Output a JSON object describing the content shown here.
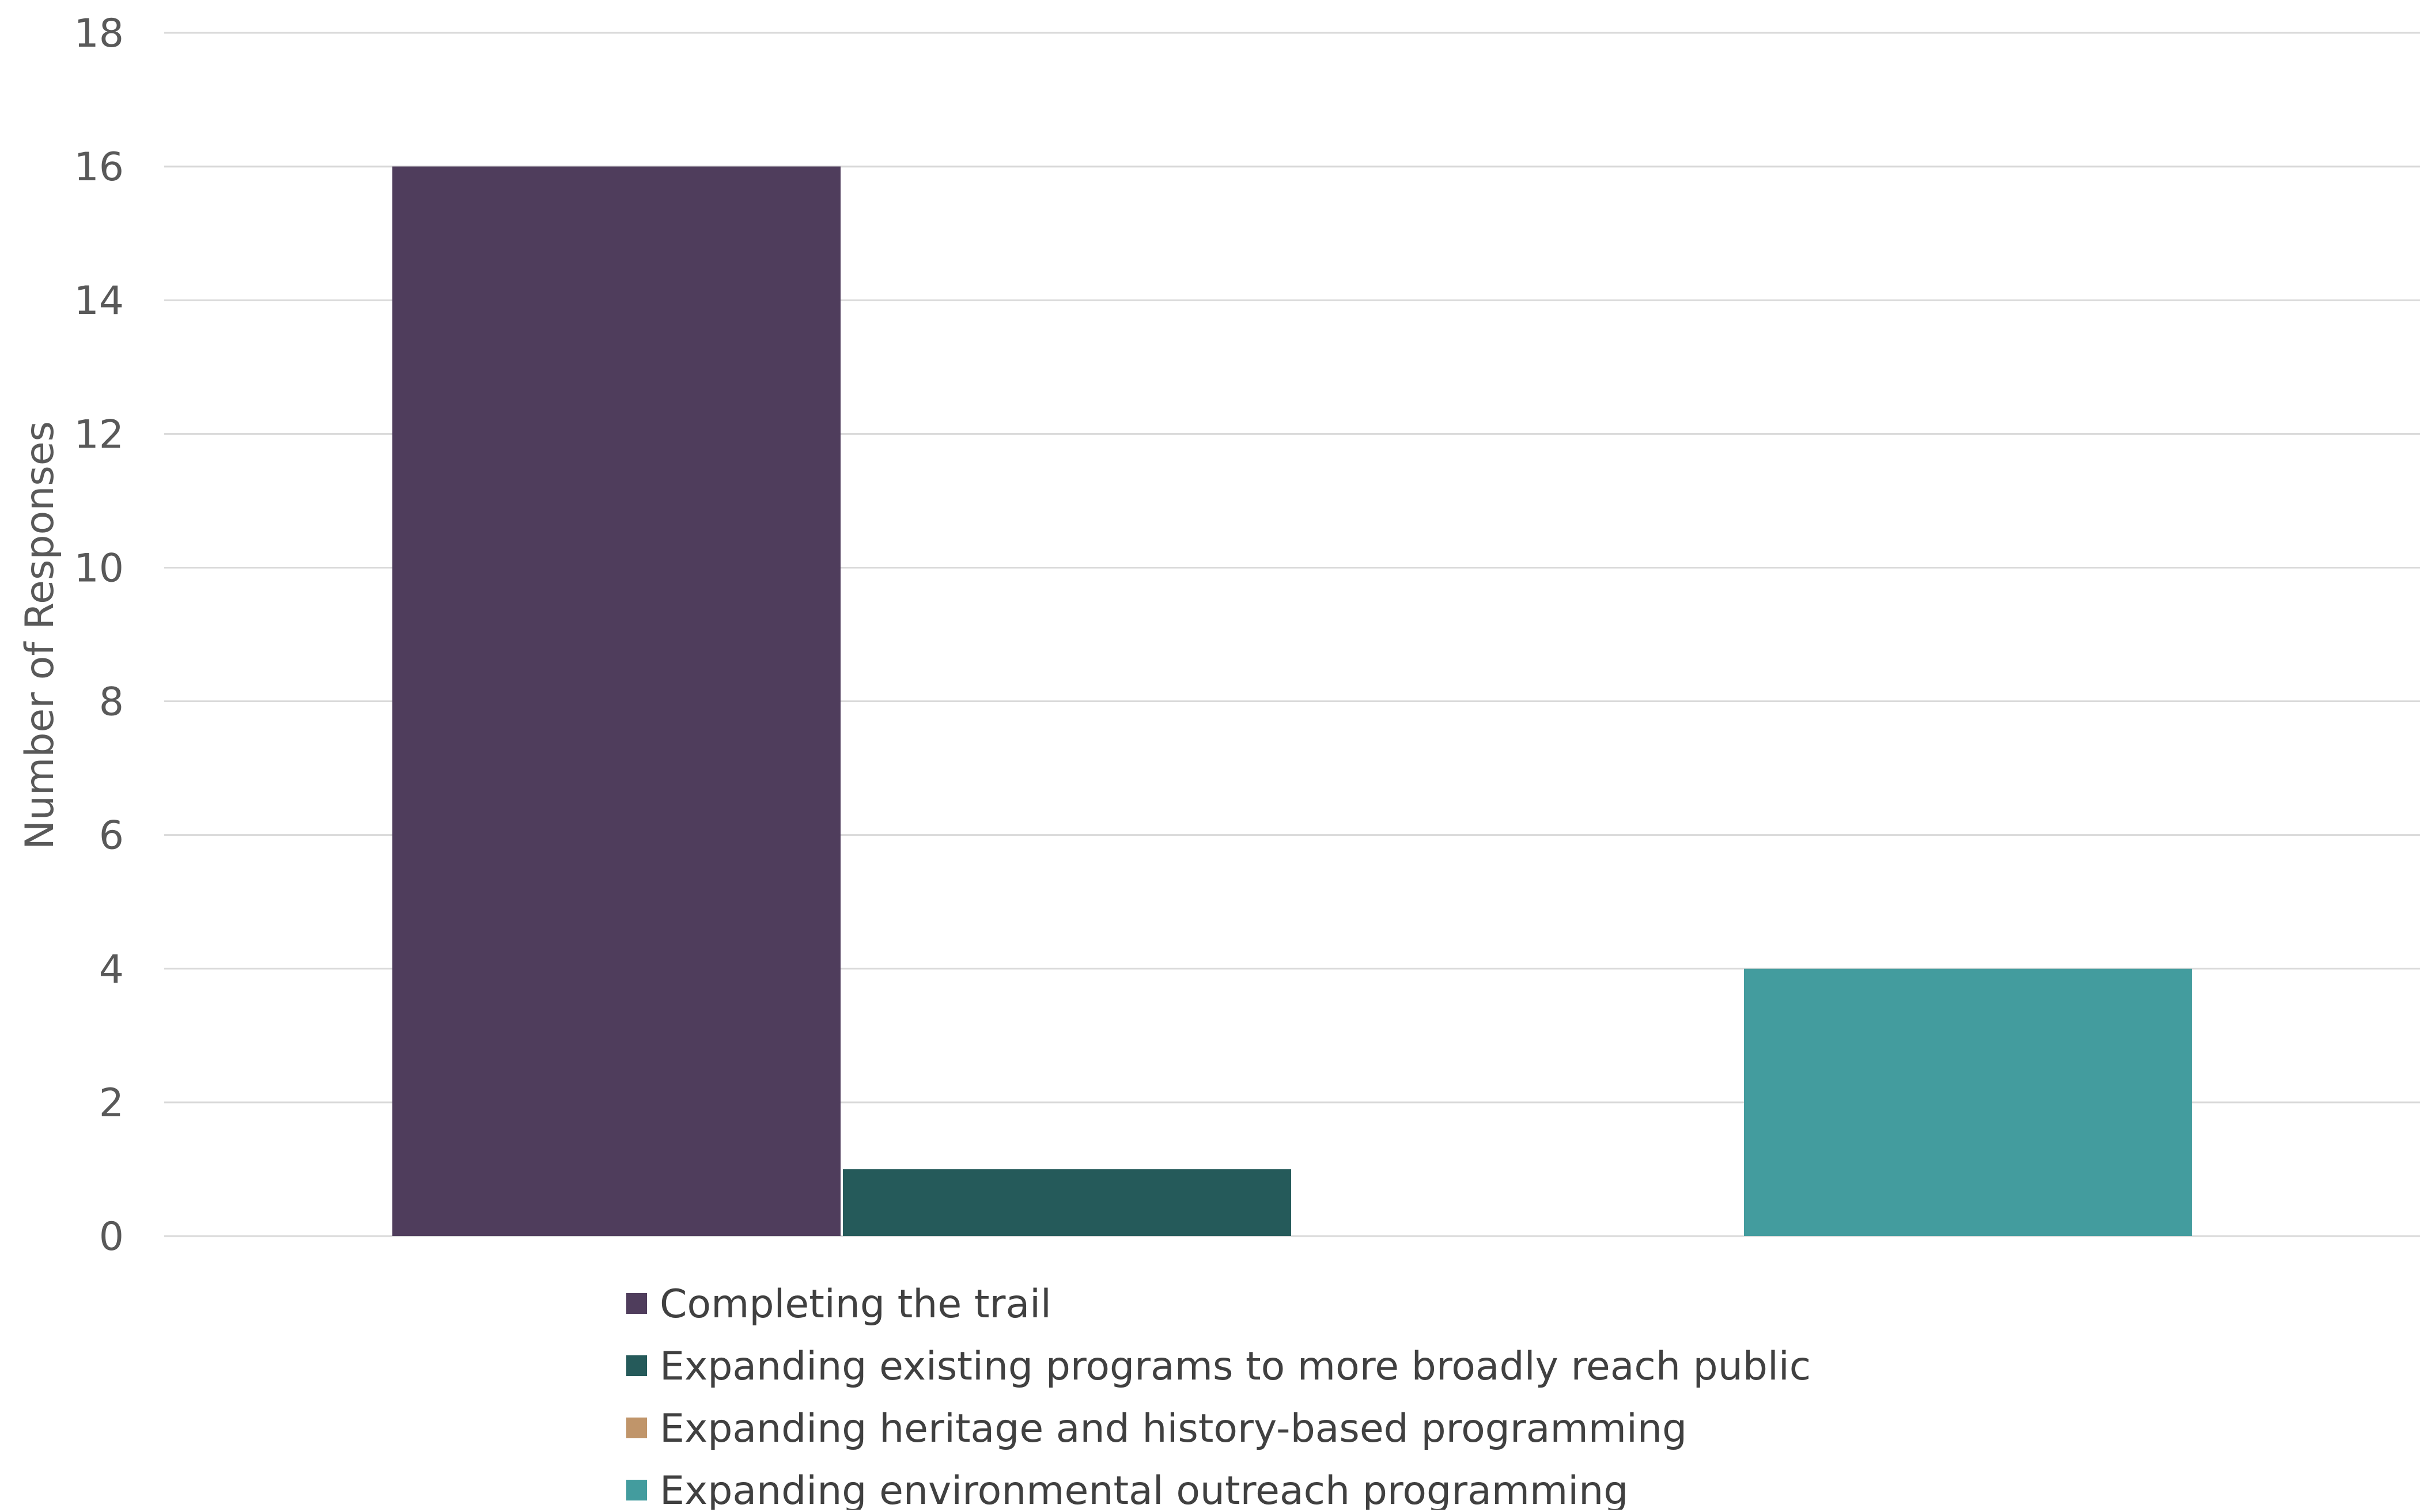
{
  "chart_data": {
    "type": "bar",
    "categories": [
      ""
    ],
    "ylabel": "Number of Responses",
    "xlabel": "",
    "ylim": [
      0,
      18
    ],
    "yticks": [
      0,
      2,
      4,
      6,
      8,
      10,
      12,
      14,
      16,
      18
    ],
    "grid": true,
    "legend_position": "bottom",
    "series": [
      {
        "name": "Completing the trail",
        "values": [
          16
        ],
        "color": "#4f3d5c"
      },
      {
        "name": "Expanding existing programs to more broadly reach public",
        "values": [
          1
        ],
        "color": "#255a5a"
      },
      {
        "name": "Expanding heritage and history-based programming",
        "values": [
          0
        ],
        "color": "#c0956a"
      },
      {
        "name": "Expanding environmental outreach programming",
        "values": [
          4
        ],
        "color": "#439c9e"
      }
    ]
  }
}
